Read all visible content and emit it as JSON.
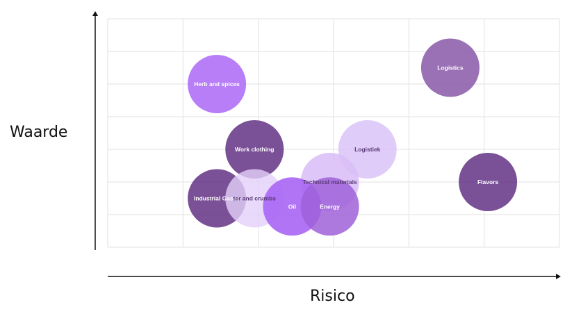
{
  "chart_data": {
    "type": "scatter",
    "title": "",
    "xlabel": "Risico",
    "ylabel": "Waarde",
    "xlim": [
      0,
      6
    ],
    "ylim": [
      0,
      7
    ],
    "grid": true,
    "legend": "none",
    "points": [
      {
        "label": "Herb and spices",
        "x": 1.45,
        "y": 5.0,
        "color": "#b377f7",
        "opacity": 0.95
      },
      {
        "label": "Logistics",
        "x": 4.55,
        "y": 5.5,
        "color": "#8a58a8",
        "opacity": 0.85
      },
      {
        "label": "Work clothing",
        "x": 1.95,
        "y": 3.0,
        "color": "#6b3d8c",
        "opacity": 0.9
      },
      {
        "label": "Logistiek",
        "x": 3.45,
        "y": 3.0,
        "color": "#ddc6f7",
        "opacity": 0.9
      },
      {
        "label": "Flavors",
        "x": 5.05,
        "y": 2.0,
        "color": "#6b3d8c",
        "opacity": 0.9
      },
      {
        "label": "Technical materials",
        "x": 2.95,
        "y": 2.0,
        "color": "#d8bdf7",
        "opacity": 0.85
      },
      {
        "label": "Industrial Gases",
        "x": 1.45,
        "y": 1.5,
        "color": "#6b3d8c",
        "opacity": 0.9
      },
      {
        "label": "ter and crumbs",
        "x": 1.95,
        "y": 1.5,
        "color": "#e3d0f9",
        "opacity": 0.8
      },
      {
        "label": "Oil",
        "x": 2.45,
        "y": 1.25,
        "color": "#a865f4",
        "opacity": 0.9
      },
      {
        "label": "Energy",
        "x": 2.95,
        "y": 1.25,
        "color": "#a062d9",
        "opacity": 0.85
      }
    ]
  }
}
